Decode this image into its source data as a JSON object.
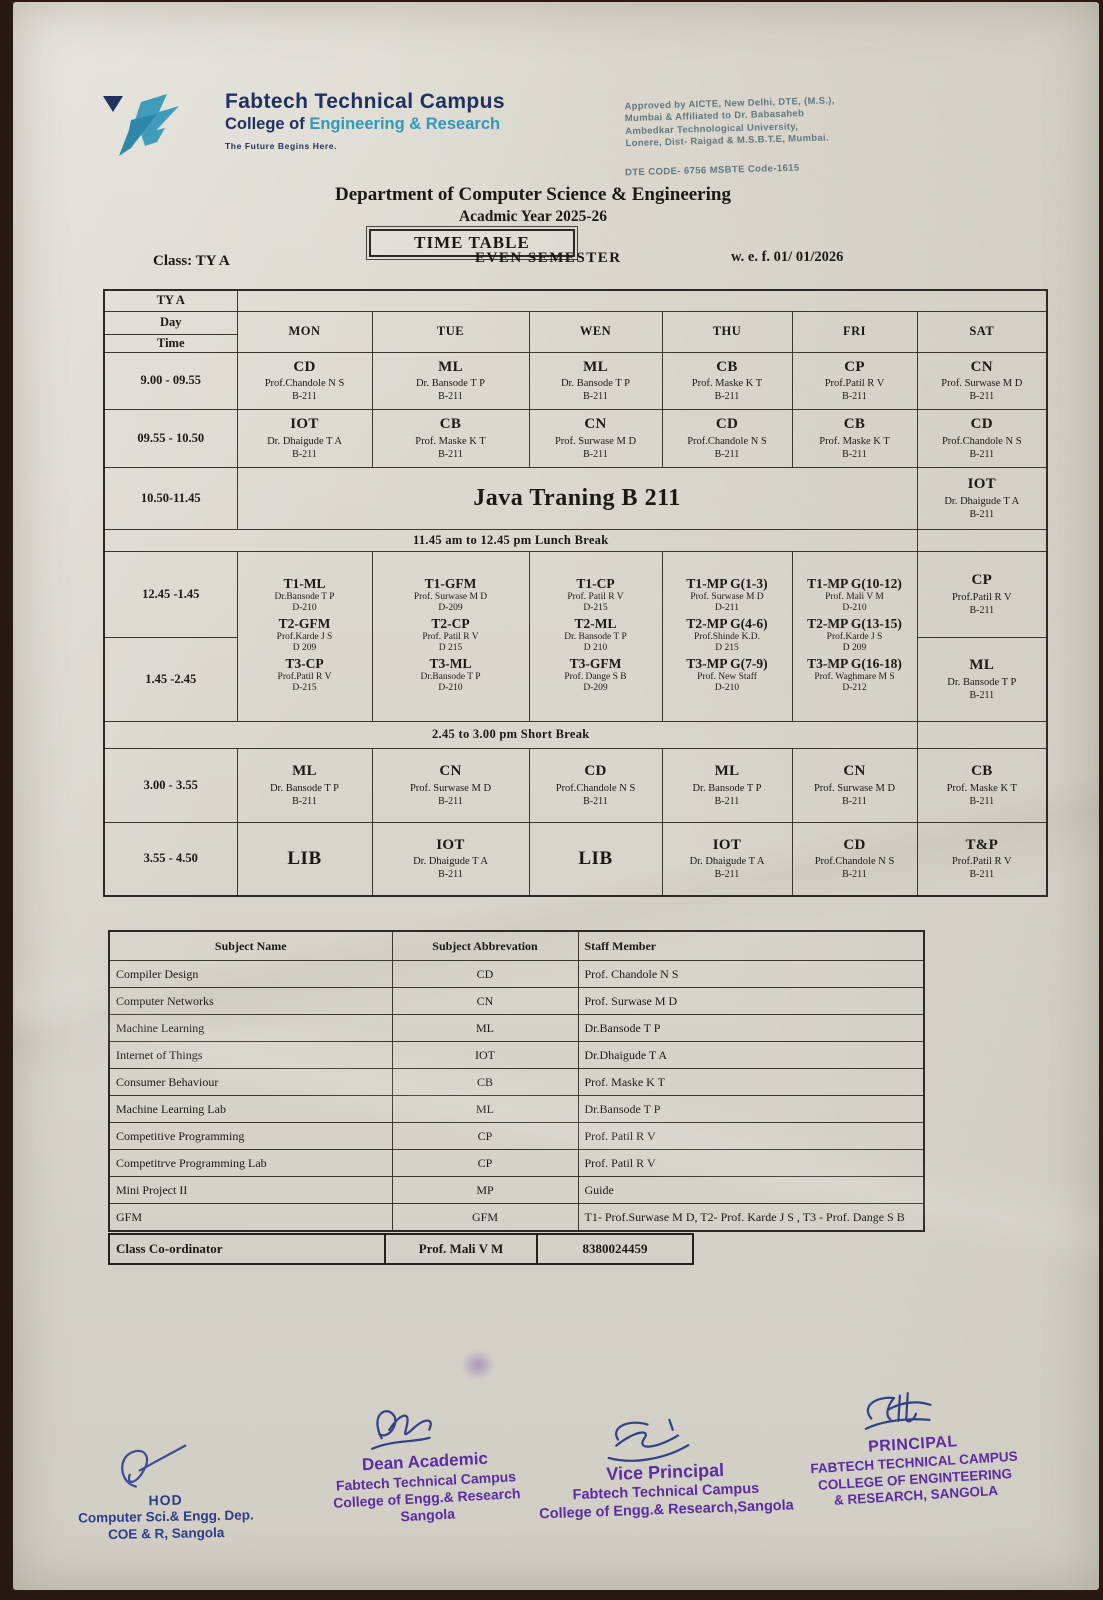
{
  "colors": {
    "brand_navy": "#21315f",
    "brand_teal": "#2e9ab8",
    "ink": "#1a1914",
    "stamp_purple": "#5a2da0",
    "stamp_navy": "#2f3c86",
    "signature_ink": "#24357f",
    "paper": "#d8d5cc",
    "desk": "#261a13"
  },
  "header": {
    "brand_name": "Fabtech Technical Campus",
    "brand_sub_prefix": "College of ",
    "brand_sub_highlight": "Engineering & Research",
    "tagline": "The Future Begins Here.",
    "approval": "Approved by AICTE, New Delhi, DTE, (M.S.),\nMumbai & Affiliated to Dr. Babasaheb\nAmbedkar Technological University,\nLonere, Dist- Raigad & M.S.B.T.E, Mumbai.",
    "codes": "DTE CODE- 6756    MSBTE Code-1615"
  },
  "title": {
    "department": "Department of Computer Science & Engineering",
    "academic_year": "Acadmic Year 2025-26",
    "timetable_label": "TIME TABLE",
    "class_label": "Class: TY A",
    "semester": "EVEN  SEMESTER",
    "wef": "w. e. f.  01/ 01/2026"
  },
  "timetable": {
    "corner_top": "TY A",
    "corner_mid": "Day",
    "corner_bot": "Time",
    "days": [
      "MON",
      "TUE",
      "WEN",
      "THU",
      "FRI",
      "SAT"
    ],
    "periods_morning": [
      {
        "time": "9.00 - 09.55",
        "cells": [
          {
            "c": "CD",
            "s": "Prof.Chandole N S",
            "r": "B-211"
          },
          {
            "c": "ML",
            "s": "Dr. Bansode T P",
            "r": "B-211"
          },
          {
            "c": "ML",
            "s": "Dr. Bansode T P",
            "r": "B-211"
          },
          {
            "c": "CB",
            "s": "Prof. Maske K T",
            "r": "B-211"
          },
          {
            "c": "CP",
            "s": "Prof.Patil R V",
            "r": "B-211"
          },
          {
            "c": "CN",
            "s": "Prof. Surwase M D",
            "r": "B-211"
          }
        ]
      },
      {
        "time": "09.55 - 10.50",
        "cells": [
          {
            "c": "IOT",
            "s": "Dr. Dhaigude T A",
            "r": "B-211"
          },
          {
            "c": "CB",
            "s": "Prof. Maske K T",
            "r": "B-211"
          },
          {
            "c": "CN",
            "s": "Prof. Surwase M D",
            "r": "B-211"
          },
          {
            "c": "CD",
            "s": "Prof.Chandole N S",
            "r": "B-211"
          },
          {
            "c": "CB",
            "s": "Prof. Maske K T",
            "r": "B-211"
          },
          {
            "c": "CD",
            "s": "Prof.Chandole N S",
            "r": "B-211"
          }
        ]
      }
    ],
    "java_row": {
      "time": "10.50-11.45",
      "merged": "Java Traning B 211",
      "sat": {
        "c": "IOT",
        "s": "Dr. Dhaigude T A",
        "r": "B-211"
      }
    },
    "lunch_break": "11.45 am to 12.45 pm  Lunch Break",
    "tutorial": {
      "time1": "12.45 -1.45",
      "time2": "1.45 -2.45",
      "cols": [
        [
          {
            "c": "T1-ML",
            "s": "Dr.Bansode T P",
            "r": "D-210"
          },
          {
            "c": "T2-GFM",
            "s": "Prof.Karde J S",
            "r": "D 209"
          },
          {
            "c": "T3-CP",
            "s": "Prof.Patil R V",
            "r": "D-215"
          }
        ],
        [
          {
            "c": "T1-GFM",
            "s": "Prof. Surwase M D",
            "r": "D-209"
          },
          {
            "c": "T2-CP",
            "s": "Prof. Patil R V",
            "r": "D 215"
          },
          {
            "c": "T3-ML",
            "s": "Dr.Bansode T P",
            "r": "D-210"
          }
        ],
        [
          {
            "c": "T1-CP",
            "s": "Prof. Patil R V",
            "r": "D-215"
          },
          {
            "c": "T2-ML",
            "s": "Dr. Bansode T P",
            "r": "D 210"
          },
          {
            "c": "T3-GFM",
            "s": "Prof. Dange S B",
            "r": "D-209"
          }
        ],
        [
          {
            "c": "T1-MP G(1-3)",
            "s": "Prof. Surwase M D",
            "r": "D-211"
          },
          {
            "c": "T2-MP G(4-6)",
            "s": "Prof.Shinde K.D.",
            "r": "D 215"
          },
          {
            "c": "T3-MP G(7-9)",
            "s": "Prof. New Staff",
            "r": "D-210"
          }
        ],
        [
          {
            "c": "T1-MP G(10-12)",
            "s": "Prof. Mali V M",
            "r": "D-210"
          },
          {
            "c": "T2-MP G(13-15)",
            "s": "Prof.Karde J S",
            "r": "D 209"
          },
          {
            "c": "T3-MP G(16-18)",
            "s": "Prof. Waghmare M S",
            "r": "D-212"
          }
        ]
      ],
      "sat1": {
        "c": "CP",
        "s": "Prof.Patil R V",
        "r": "B-211"
      },
      "sat2": {
        "c": "ML",
        "s": "Dr. Bansode T P",
        "r": "B-211"
      }
    },
    "short_break": "2.45 to  3.00 pm Short Break",
    "periods_afternoon": [
      {
        "time": "3.00 - 3.55",
        "cells": [
          {
            "c": "ML",
            "s": "Dr. Bansode T P",
            "r": "B-211"
          },
          {
            "c": "CN",
            "s": "Prof. Surwase M D",
            "r": "B-211"
          },
          {
            "c": "CD",
            "s": "Prof.Chandole N S",
            "r": "B-211"
          },
          {
            "c": "ML",
            "s": "Dr. Bansode T P",
            "r": "B-211"
          },
          {
            "c": "CN",
            "s": "Prof. Surwase M D",
            "r": "B-211"
          },
          {
            "c": "CB",
            "s": "Prof. Maske K T",
            "r": "B-211"
          }
        ]
      },
      {
        "time": "3.55 - 4.50",
        "cells": [
          {
            "c": "LIB",
            "s": "",
            "r": ""
          },
          {
            "c": "IOT",
            "s": "Dr. Dhaigude T A",
            "r": "B-211"
          },
          {
            "c": "LIB",
            "s": "",
            "r": ""
          },
          {
            "c": "IOT",
            "s": "Dr. Dhaigude T A",
            "r": "B-211"
          },
          {
            "c": "CD",
            "s": "Prof.Chandole N S",
            "r": "B-211"
          },
          {
            "c": "T&P",
            "s": "Prof.Patil R V",
            "r": "B-211"
          }
        ]
      }
    ]
  },
  "subjects": {
    "headers": [
      "Subject Name",
      "Subject Abbrevation",
      "Staff Member"
    ],
    "rows": [
      [
        "Compiler Design",
        "CD",
        "Prof. Chandole N S"
      ],
      [
        "Computer Networks",
        "CN",
        "Prof. Surwase M D"
      ],
      [
        "Machine Learning",
        "ML",
        "Dr.Bansode T P"
      ],
      [
        "Internet of Things",
        "IOT",
        "Dr.Dhaigude T A"
      ],
      [
        "Consumer Behaviour",
        "CB",
        "Prof. Maske K T"
      ],
      [
        "Machine Learning Lab",
        "ML",
        "Dr.Bansode T P"
      ],
      [
        "Competitive Programming",
        "CP",
        "Prof. Patil R V"
      ],
      [
        "Competitrve Programming Lab",
        "CP",
        "Prof. Patil R V"
      ],
      [
        "Mini Project II",
        "MP",
        "Guide"
      ],
      [
        "GFM",
        "GFM",
        "T1- Prof.Surwase M D, T2- Prof. Karde J S , T3 - Prof. Dange S B"
      ]
    ]
  },
  "coordinator": {
    "label": "Class Co-ordinator",
    "name": "Prof. Mali V M",
    "phone": "8380024459"
  },
  "signatures": [
    {
      "title": "HOD",
      "lines": [
        "Computer Sci.& Engg. Dep.",
        "COE & R, Sangola"
      ]
    },
    {
      "title": "Dean Academic",
      "lines": [
        "Fabtech Technical Campus",
        "College of Engg.& Research",
        "Sangola"
      ]
    },
    {
      "title": "Vice Principal",
      "lines": [
        "Fabtech Technical Campus",
        "College of Engg.& Research,Sangola"
      ]
    },
    {
      "title": "PRINCIPAL",
      "lines": [
        "FABTECH TECHNICAL CAMPUS",
        "COLLEGE OF ENGINTEERING",
        "& RESEARCH, SANGOLA"
      ]
    }
  ]
}
